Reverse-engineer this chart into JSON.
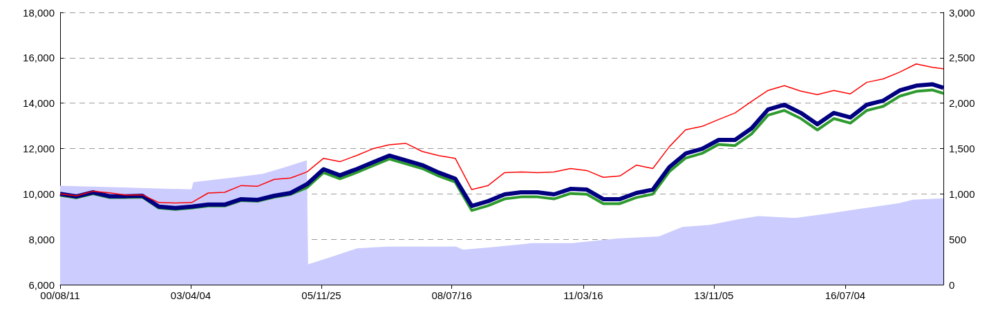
{
  "chart_data": {
    "type": "line",
    "x": [
      "2000-08-11",
      "2000-12-11",
      "2001-04-11",
      "2001-08-11",
      "2001-12-11",
      "2002-04-11",
      "2002-08-11",
      "2002-12-11",
      "2003-04-11",
      "2003-08-11",
      "2003-12-11",
      "2004-04-11",
      "2004-08-11",
      "2004-12-11",
      "2005-04-11",
      "2005-08-11",
      "2005-12-11",
      "2006-04-11",
      "2006-08-11",
      "2006-12-11",
      "2007-04-11",
      "2007-08-11",
      "2007-12-11",
      "2008-04-11",
      "2008-08-11",
      "2008-12-11",
      "2009-04-11",
      "2009-08-11",
      "2009-12-11",
      "2010-04-11",
      "2010-08-11",
      "2010-12-11",
      "2011-04-11",
      "2011-08-11",
      "2011-12-11",
      "2012-04-11",
      "2012-08-11",
      "2012-12-11",
      "2013-04-11",
      "2013-08-11",
      "2013-12-11",
      "2014-04-11",
      "2014-08-11",
      "2014-12-11",
      "2015-04-11",
      "2015-08-11",
      "2015-12-11",
      "2016-04-11",
      "2016-08-11",
      "2016-12-11",
      "2017-04-11",
      "2017-08-11",
      "2017-12-11",
      "2018-04-11",
      "2018-06-30"
    ],
    "series": [
      {
        "type": "area",
        "axis": "y2",
        "color": "#ccccff",
        "x": [
          "2000-08-11",
          "2001-11-28",
          "2002-08-12",
          "2003-04-09",
          "2003-04-24",
          "2004-02-24",
          "2004-09-16",
          "2005-03-03",
          "2005-08-09",
          "2005-08-19",
          "2006-02-09",
          "2006-08-17",
          "2007-03-24",
          "2008-08-17",
          "2008-10-07",
          "2009-04-30",
          "2010-03-03",
          "2010-12-20",
          "2011-11-23",
          "2012-09-25",
          "2013-03-18",
          "2013-10-08",
          "2014-05-01",
          "2014-10-01",
          "2015-06-30",
          "2016-03-12",
          "2016-10-02",
          "2017-08-06",
          "2017-11-16",
          "2018-06-30"
        ],
        "values": [
          1090,
          1070,
          1060,
          1050,
          1130,
          1183,
          1220,
          1295,
          1370,
          225,
          307,
          400,
          420,
          420,
          385,
          412,
          457,
          457,
          509,
          531,
          636,
          659,
          719,
          756,
          734,
          786,
          831,
          898,
          936,
          951
        ]
      },
      {
        "color": "#2e9a2e",
        "values": [
          9940,
          9830,
          10010,
          9840,
          9840,
          9860,
          9380,
          9320,
          9380,
          9470,
          9470,
          9710,
          9680,
          9860,
          9980,
          10280,
          10940,
          10670,
          10940,
          11240,
          11540,
          11330,
          11120,
          10790,
          10520,
          9270,
          9480,
          9780,
          9870,
          9870,
          9780,
          10020,
          9990,
          9570,
          9570,
          9840,
          9990,
          10980,
          11580,
          11790,
          12180,
          12130,
          12640,
          13470,
          13680,
          13320,
          12820,
          13320,
          13120,
          13680,
          13860,
          14310,
          14520,
          14580,
          14430
        ]
      },
      {
        "color": "#000080",
        "values": [
          10000,
          9890,
          10070,
          9900,
          9900,
          9920,
          9440,
          9380,
          9440,
          9530,
          9530,
          9770,
          9740,
          9920,
          10040,
          10430,
          11090,
          10820,
          11090,
          11390,
          11690,
          11480,
          11270,
          10940,
          10670,
          9470,
          9680,
          9980,
          10070,
          10070,
          9980,
          10220,
          10190,
          9770,
          9770,
          10040,
          10190,
          11180,
          11780,
          11990,
          12380,
          12380,
          12890,
          13720,
          13930,
          13570,
          13070,
          13570,
          13370,
          13930,
          14110,
          14560,
          14770,
          14830,
          14680
        ]
      },
      {
        "color": "#ff0000",
        "values": [
          10000,
          9920,
          10120,
          10050,
          9950,
          9960,
          9620,
          9600,
          9620,
          10040,
          10070,
          10370,
          10340,
          10640,
          10700,
          10970,
          11570,
          11420,
          11690,
          11990,
          12170,
          12230,
          11870,
          11690,
          11570,
          10190,
          10370,
          10940,
          10970,
          10940,
          10970,
          11120,
          11030,
          10730,
          10790,
          11270,
          11120,
          12080,
          12830,
          12980,
          13280,
          13570,
          14080,
          14560,
          14770,
          14530,
          14380,
          14560,
          14410,
          14920,
          15070,
          15370,
          15730,
          15580,
          15520
        ]
      }
    ],
    "xlim": [
      "2000-08-11",
      "2018-06-30"
    ],
    "xticks": [
      {
        "value": "2000-08-11",
        "label": "00/08/11"
      },
      {
        "value": "2003-04-04",
        "label": "03/04/04"
      },
      {
        "value": "2005-11-25",
        "label": "05/11/25"
      },
      {
        "value": "2008-07-16",
        "label": "08/07/16"
      },
      {
        "value": "2011-03-16",
        "label": "11/03/16"
      },
      {
        "value": "2013-11-05",
        "label": "13/11/05"
      },
      {
        "value": "2016-07-04",
        "label": "16/07/04"
      }
    ],
    "ylim": [
      6000,
      18000
    ],
    "yticks": [
      {
        "value": 6000,
        "label": "6,000"
      },
      {
        "value": 8000,
        "label": "8,000"
      },
      {
        "value": 10000,
        "label": "10,000"
      },
      {
        "value": 12000,
        "label": "12,000"
      },
      {
        "value": 14000,
        "label": "14,000"
      },
      {
        "value": 16000,
        "label": "16,000"
      },
      {
        "value": 18000,
        "label": "18,000"
      }
    ],
    "y2lim": [
      0,
      3000
    ],
    "y2ticks": [
      0,
      {
        "value": 500,
        "label": "500"
      },
      {
        "value": 1000,
        "label": "1,000"
      },
      {
        "value": 1500,
        "label": "1,500"
      },
      {
        "value": 2000,
        "label": "2,000"
      },
      {
        "value": 2500,
        "label": "2,500"
      },
      {
        "value": 3000,
        "label": "3,000"
      }
    ],
    "grid": "y"
  }
}
